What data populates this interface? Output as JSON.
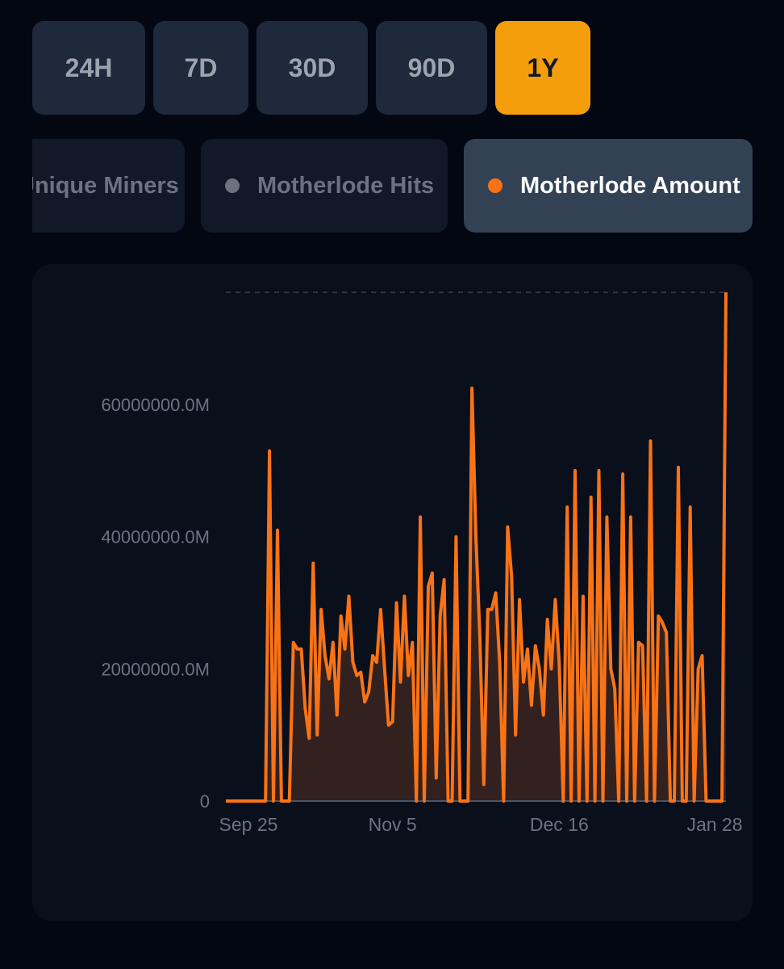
{
  "time_ranges": [
    {
      "label": "24H",
      "active": false
    },
    {
      "label": "7D",
      "active": false
    },
    {
      "label": "30D",
      "active": false
    },
    {
      "label": "90D",
      "active": false
    },
    {
      "label": "1Y",
      "active": true
    }
  ],
  "metrics": [
    {
      "label": "Unique Miners",
      "dot_color": "#6b7280",
      "active": false
    },
    {
      "label": "Motherlode Hits",
      "dot_color": "#6b7280",
      "active": false
    },
    {
      "label": "Motherlode Amount",
      "dot_color": "#f97316",
      "active": true
    }
  ],
  "colors": {
    "accent": "#f59e0b",
    "series": "#f97316",
    "fill": "#3b2420"
  },
  "chart_data": {
    "type": "area",
    "title": "",
    "xlabel": "",
    "ylabel": "",
    "x_ticks": [
      "Sep 25",
      "Nov 5",
      "Dec 16",
      "Jan 28"
    ],
    "y_ticks": [
      {
        "value": 0,
        "label": "0"
      },
      {
        "value": 20000000,
        "label": "20000000.0M"
      },
      {
        "value": 40000000,
        "label": "40000000.0M"
      },
      {
        "value": 60000000,
        "label": "60000000.0M"
      }
    ],
    "ylim": [
      0,
      77000000
    ],
    "grid": false,
    "series": [
      {
        "name": "Motherlode Amount",
        "values": [
          0,
          0,
          0,
          0,
          0,
          0,
          0,
          0,
          0,
          0,
          0,
          53000000,
          0,
          41000000,
          0,
          0,
          0,
          24000000,
          23000000,
          23000000,
          14000000,
          9500000,
          36000000,
          10000000,
          29000000,
          22000000,
          18500000,
          24000000,
          13000000,
          28000000,
          23000000,
          31000000,
          21000000,
          19000000,
          19500000,
          15000000,
          16500000,
          22000000,
          21000000,
          29000000,
          20000000,
          11500000,
          12000000,
          30000000,
          18000000,
          31000000,
          19000000,
          24000000,
          0,
          43000000,
          0,
          32500000,
          34500000,
          3500000,
          28000000,
          33500000,
          0,
          0,
          40000000,
          0,
          0,
          0,
          62500000,
          40000000,
          25000000,
          2500000,
          29000000,
          29000000,
          31500000,
          21000000,
          0,
          41500000,
          34000000,
          10000000,
          30500000,
          18000000,
          23000000,
          14500000,
          23500000,
          20000000,
          13000000,
          27500000,
          20000000,
          30500000,
          21000000,
          0,
          44500000,
          0,
          50000000,
          0,
          31000000,
          0,
          46000000,
          0,
          50000000,
          0,
          43000000,
          20000000,
          17000000,
          0,
          49500000,
          0,
          43000000,
          0,
          24000000,
          23500000,
          0,
          54500000,
          0,
          28000000,
          27000000,
          25500000,
          0,
          0,
          50500000,
          0,
          0,
          44500000,
          0,
          20000000,
          22000000,
          0,
          0,
          0,
          0,
          0,
          77000000
        ]
      }
    ]
  }
}
